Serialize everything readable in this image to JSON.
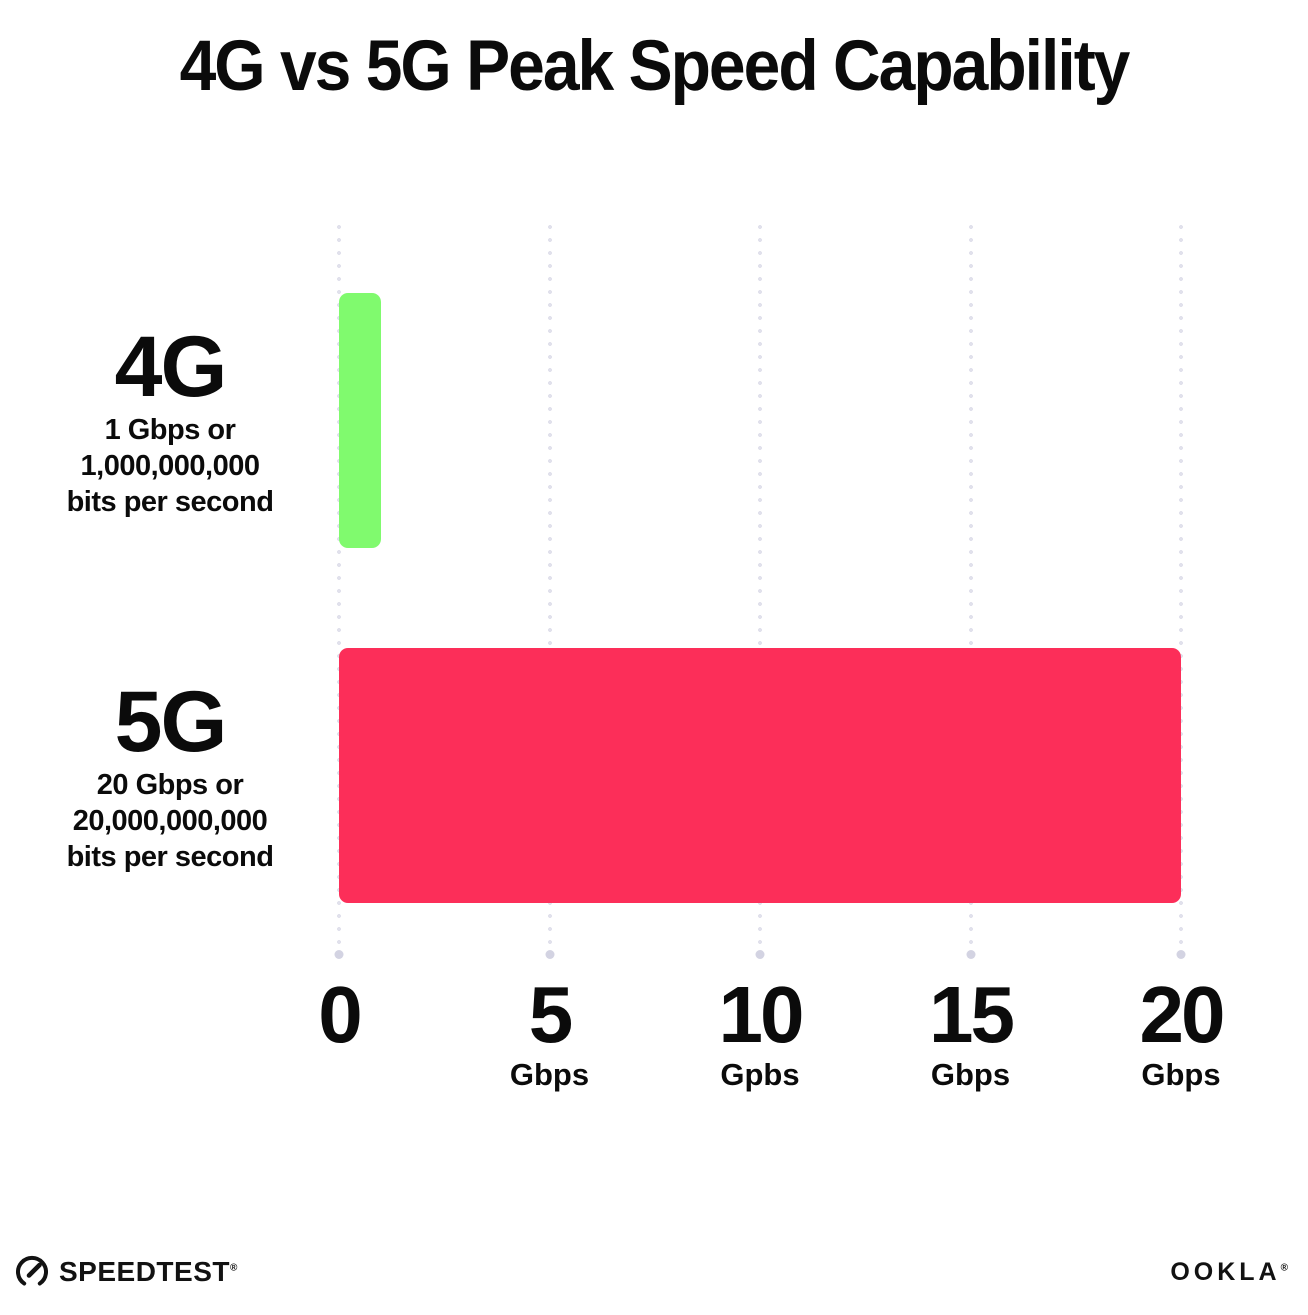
{
  "chart_data": {
    "type": "bar",
    "orientation": "horizontal",
    "title": "4G vs 5G Peak Speed Capability",
    "categories": [
      "4G",
      "5G"
    ],
    "values": [
      1,
      20
    ],
    "bar_colors": [
      "#80FA6E",
      "#FC2E59"
    ],
    "bar_sublabels": [
      [
        "1 Gbps or",
        "1,000,000,000",
        "bits per second"
      ],
      [
        "20 Gbps or",
        "20,000,000,000",
        "bits per second"
      ]
    ],
    "xlim": [
      0,
      20
    ],
    "x_ticks": [
      {
        "value": 0,
        "label": "0",
        "unit": ""
      },
      {
        "value": 5,
        "label": "5",
        "unit": "Gbps"
      },
      {
        "value": 10,
        "label": "10",
        "unit": "Gpbs"
      },
      {
        "value": 15,
        "label": "15",
        "unit": "Gbps"
      },
      {
        "value": 20,
        "label": "20",
        "unit": "Gbps"
      }
    ],
    "grid": "vertical-dotted",
    "legend": "none",
    "gridline_color": "#e1e1ec"
  },
  "footer": {
    "speedtest_label": "SPEEDTEST",
    "speedtest_trademark": "®",
    "ookla_label": "OOKLA",
    "ookla_trademark": "®"
  },
  "colors": {
    "background": "#ffffff",
    "text": "#0b0b0b",
    "bar_4g": "#80FA6E",
    "bar_5g": "#FC2E59"
  }
}
